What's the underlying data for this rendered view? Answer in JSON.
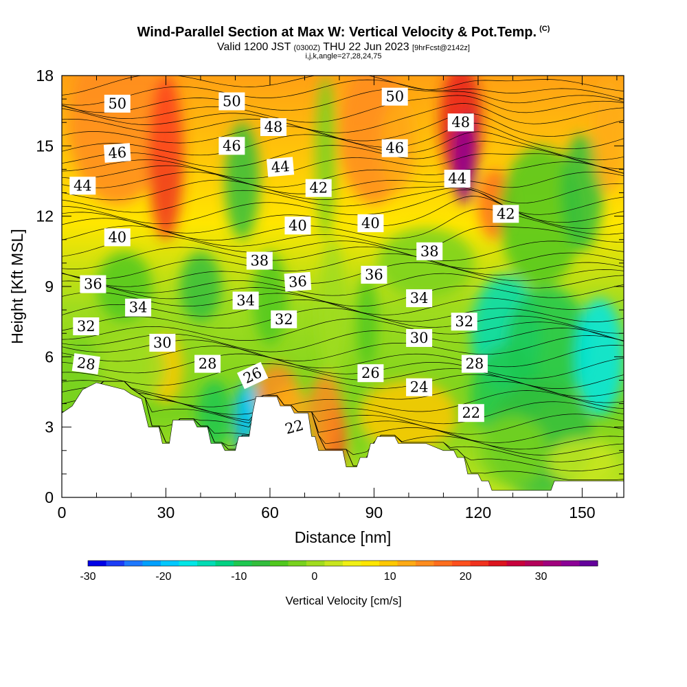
{
  "title": {
    "main": "Wind-Parallel Section at Max W: Vertical Velocity & Pot.Temp.",
    "main_unit": "(C)",
    "valid": "Valid 1200 JST",
    "valid_utc": "(0300Z)",
    "date": "THU 22 Jun 2023",
    "forecast": "[9hrFcst@2142z]",
    "indices": "i,j,k,angle=27,28,24,75"
  },
  "chart_data": {
    "type": "heatmap",
    "xlabel": "Distance [nm]",
    "ylabel": "Height [Kft MSL]",
    "xlim": [
      0,
      162
    ],
    "ylim": [
      0,
      18
    ],
    "x_ticks": [
      0,
      30,
      60,
      90,
      120,
      150
    ],
    "y_ticks": [
      0,
      3,
      6,
      9,
      12,
      15,
      18
    ],
    "grid": false,
    "colorbar": {
      "label": "Vertical Velocity [cm/s]",
      "range": [
        -30,
        37.5
      ],
      "ticks": [
        -30,
        -20,
        -10,
        0,
        10,
        20,
        30
      ],
      "colors": [
        "#0000e6",
        "#1c3cf5",
        "#1e78ff",
        "#00a0ff",
        "#00c8ff",
        "#00e6e6",
        "#00dcb4",
        "#00d282",
        "#1ec850",
        "#32be3c",
        "#50c81e",
        "#78d21e",
        "#a0dc1e",
        "#c8e61e",
        "#f0f014",
        "#ffe600",
        "#ffc800",
        "#ffaa14",
        "#ff8c1e",
        "#ff6e1e",
        "#ff501e",
        "#f0321e",
        "#dc141e",
        "#c8003c",
        "#b4005a",
        "#a0007d",
        "#8c0096",
        "#64009b"
      ]
    },
    "terrain_profile": [
      [
        0,
        3.6
      ],
      [
        3,
        3.9
      ],
      [
        6,
        4.6
      ],
      [
        10,
        4.9
      ],
      [
        18,
        4.6
      ],
      [
        20,
        4.4
      ],
      [
        23,
        4.2
      ],
      [
        25,
        3.0
      ],
      [
        28,
        3.0
      ],
      [
        29,
        2.3
      ],
      [
        31,
        2.3
      ],
      [
        32,
        3.3
      ],
      [
        38,
        3.3
      ],
      [
        39,
        3.0
      ],
      [
        42,
        3.0
      ],
      [
        43,
        2.3
      ],
      [
        46,
        2.3
      ],
      [
        47,
        2.0
      ],
      [
        50,
        2.0
      ],
      [
        51,
        2.6
      ],
      [
        54,
        2.6
      ],
      [
        55,
        3.6
      ],
      [
        56,
        4.3
      ],
      [
        62,
        4.3
      ],
      [
        63,
        3.9
      ],
      [
        66,
        3.9
      ],
      [
        67,
        3.6
      ],
      [
        71,
        3.6
      ],
      [
        72,
        2.6
      ],
      [
        73,
        2.6
      ],
      [
        74,
        2.0
      ],
      [
        81,
        2.0
      ],
      [
        82,
        1.3
      ],
      [
        85,
        1.3
      ],
      [
        86,
        1.7
      ],
      [
        88,
        1.7
      ],
      [
        89,
        2.3
      ],
      [
        90,
        2.3
      ],
      [
        91,
        2.6
      ],
      [
        96,
        2.6
      ],
      [
        97,
        2.3
      ],
      [
        105,
        2.3
      ],
      [
        110,
        2.0
      ],
      [
        113,
        2.0
      ],
      [
        114,
        1.7
      ],
      [
        116,
        1.7
      ],
      [
        117,
        1.0
      ],
      [
        120,
        1.0
      ],
      [
        121,
        0.7
      ],
      [
        123,
        0.7
      ],
      [
        124,
        0.3
      ],
      [
        141,
        0.3
      ],
      [
        142,
        0.7
      ],
      [
        162,
        0.7
      ]
    ],
    "theta_labels": [
      {
        "text": "50",
        "x": 16,
        "y": 16.8,
        "angle": 0
      },
      {
        "text": "46",
        "x": 16,
        "y": 14.7,
        "angle": -4
      },
      {
        "text": "44",
        "x": 6,
        "y": 13.3,
        "angle": 0
      },
      {
        "text": "40",
        "x": 16,
        "y": 11.1,
        "angle": 0
      },
      {
        "text": "36",
        "x": 9,
        "y": 9.1,
        "angle": 0
      },
      {
        "text": "34",
        "x": 22,
        "y": 8.1,
        "angle": 0
      },
      {
        "text": "32",
        "x": 7,
        "y": 7.3,
        "angle": 0
      },
      {
        "text": "30",
        "x": 29,
        "y": 6.6,
        "angle": 0
      },
      {
        "text": "28",
        "x": 7,
        "y": 5.7,
        "angle": 8
      },
      {
        "text": "28",
        "x": 42,
        "y": 5.7,
        "angle": 0
      },
      {
        "text": "50",
        "x": 49,
        "y": 16.9,
        "angle": 0
      },
      {
        "text": "46",
        "x": 49,
        "y": 15.0,
        "angle": 0
      },
      {
        "text": "48",
        "x": 61,
        "y": 15.8,
        "angle": 0
      },
      {
        "text": "44",
        "x": 63,
        "y": 14.1,
        "angle": -5
      },
      {
        "text": "42",
        "x": 74,
        "y": 13.2,
        "angle": 0
      },
      {
        "text": "40",
        "x": 68,
        "y": 11.6,
        "angle": 0
      },
      {
        "text": "38",
        "x": 57,
        "y": 10.1,
        "angle": 0
      },
      {
        "text": "36",
        "x": 68,
        "y": 9.2,
        "angle": -4
      },
      {
        "text": "34",
        "x": 53,
        "y": 8.4,
        "angle": 0
      },
      {
        "text": "32",
        "x": 64,
        "y": 7.6,
        "angle": 0
      },
      {
        "text": "26",
        "x": 55,
        "y": 5.2,
        "angle": -25
      },
      {
        "text": "22",
        "x": 67,
        "y": 3.0,
        "angle": -15
      },
      {
        "text": "50",
        "x": 96,
        "y": 17.1,
        "angle": 0
      },
      {
        "text": "48",
        "x": 115,
        "y": 16.0,
        "angle": 0
      },
      {
        "text": "46",
        "x": 96,
        "y": 14.9,
        "angle": 0
      },
      {
        "text": "44",
        "x": 114,
        "y": 13.6,
        "angle": 0
      },
      {
        "text": "42",
        "x": 128,
        "y": 12.1,
        "angle": 0
      },
      {
        "text": "40",
        "x": 89,
        "y": 11.7,
        "angle": 0
      },
      {
        "text": "38",
        "x": 106,
        "y": 10.5,
        "angle": 0
      },
      {
        "text": "36",
        "x": 90,
        "y": 9.5,
        "angle": 0
      },
      {
        "text": "34",
        "x": 103,
        "y": 8.5,
        "angle": 0
      },
      {
        "text": "32",
        "x": 116,
        "y": 7.5,
        "angle": 0
      },
      {
        "text": "30",
        "x": 103,
        "y": 6.8,
        "angle": 0
      },
      {
        "text": "28",
        "x": 119,
        "y": 5.7,
        "angle": 0
      },
      {
        "text": "26",
        "x": 89,
        "y": 5.3,
        "angle": 0
      },
      {
        "text": "24",
        "x": 103,
        "y": 4.7,
        "angle": 0
      },
      {
        "text": "22",
        "x": 118,
        "y": 3.6,
        "angle": 0
      }
    ]
  }
}
